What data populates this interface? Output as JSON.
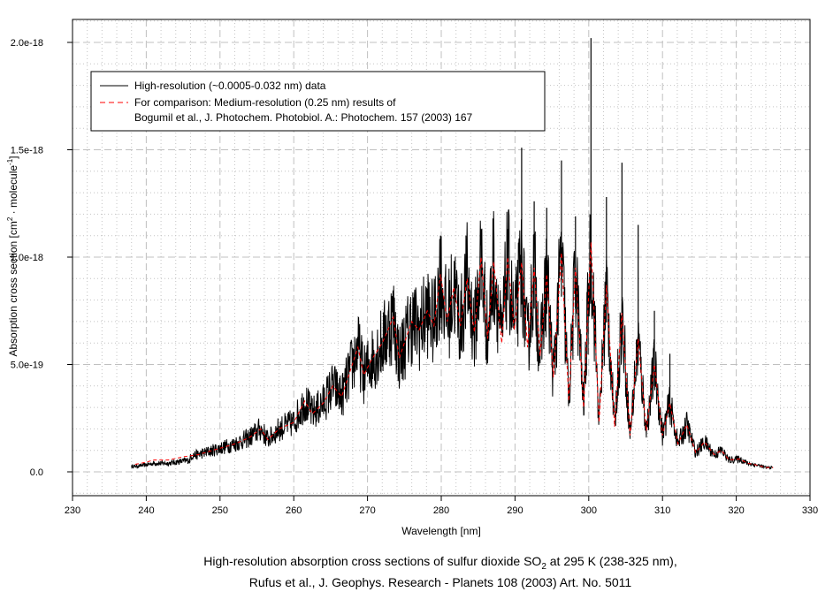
{
  "chart_data": {
    "type": "line",
    "title_line1_a": "High-resolution absorption cross sections of sulfur dioxide SO",
    "title_line1_sub": "2",
    "title_line1_b": " at 295 K (238-325 nm),",
    "title_line2": "Rufus et al., J. Geophys. Research - Planets 108 (2003) Art. No. 5011",
    "xlabel": "Wavelength [nm]",
    "ylabel_a": "Absorption cross section [cm",
    "ylabel_sup1": "2",
    "ylabel_b": " · molecule",
    "ylabel_sup2": "-1",
    "ylabel_c": "]",
    "xlim": [
      230,
      330
    ],
    "ylim_units_1e-19": [
      -1.1,
      21.1
    ],
    "x_ticks": [
      230,
      240,
      250,
      260,
      270,
      280,
      290,
      300,
      310,
      320,
      330
    ],
    "x_tick_labels": [
      "230",
      "240",
      "250",
      "260",
      "270",
      "280",
      "290",
      "300",
      "310",
      "320",
      "330"
    ],
    "y_ticks_units_1e-19": [
      0,
      5,
      10,
      15,
      20
    ],
    "y_tick_labels": [
      "0.0",
      "5.0e-19",
      "1.0e-18",
      "1.5e-18",
      "2.0e-18"
    ],
    "grid": {
      "major": true,
      "minor": true,
      "x_minor_step": 2,
      "y_minor_step_units_1e-19": 1
    },
    "y_unit": "1e-19 cm^2/molecule",
    "legend": {
      "placement": "top-left",
      "entries": [
        {
          "label": "High-resolution (~0.0005-0.032 nm) data",
          "color": "#000000",
          "style": "solid"
        },
        {
          "label": "For comparison: Medium-resolution (0.25 nm) results of",
          "label2": "Bogumil et al., J. Photochem. Photobiol. A.: Photochem. 157 (2003) 167",
          "color": "#ff0000",
          "style": "dashed"
        }
      ]
    },
    "series": [
      {
        "name": "High-resolution (~0.0005-0.032 nm) data",
        "color": "#000000",
        "note": "dense band around medium-resolution curve",
        "spread_fraction": 0.3,
        "spikes": [
          [
            279.9,
            11.0
          ],
          [
            285.4,
            11.3
          ],
          [
            289,
            11.3
          ],
          [
            290.9,
            15.1
          ],
          [
            292.6,
            12.6
          ],
          [
            294.3,
            12.3
          ],
          [
            296.3,
            14.5
          ],
          [
            298.2,
            11.9
          ],
          [
            300.3,
            20.2
          ],
          [
            302.4,
            12.8
          ],
          [
            304.5,
            14.4
          ],
          [
            306.7,
            11.5
          ],
          [
            308.9,
            7.5
          ],
          [
            311,
            5.5
          ]
        ]
      },
      {
        "name": "Medium-resolution (0.25 nm) Bogumil et al.",
        "color": "#ff0000",
        "points": [
          [
            238.5,
            0.35
          ],
          [
            240,
            0.45
          ],
          [
            241,
            0.55
          ],
          [
            243,
            0.55
          ],
          [
            245,
            0.7
          ],
          [
            247,
            0.8
          ],
          [
            249,
            1.0
          ],
          [
            250,
            1.1
          ],
          [
            252,
            1.3
          ],
          [
            254,
            1.6
          ],
          [
            255.5,
            2.0
          ],
          [
            256.5,
            1.5
          ],
          [
            258,
            2.0
          ],
          [
            260,
            2.3
          ],
          [
            261.5,
            3.3
          ],
          [
            262.5,
            2.7
          ],
          [
            264,
            3.2
          ],
          [
            265.3,
            4.0
          ],
          [
            266.5,
            3.5
          ],
          [
            268.7,
            5.8
          ],
          [
            269.5,
            4.5
          ],
          [
            270.5,
            5.2
          ],
          [
            272,
            6.0
          ],
          [
            273.5,
            7.2
          ],
          [
            274.3,
            5.3
          ],
          [
            276,
            7.0
          ],
          [
            277,
            6.6
          ],
          [
            278.1,
            7.5
          ],
          [
            279,
            6.8
          ],
          [
            279.9,
            9.2
          ],
          [
            280.8,
            7.0
          ],
          [
            281.7,
            8.6
          ],
          [
            282.6,
            6.8
          ],
          [
            283.5,
            9.0
          ],
          [
            284.5,
            6.5
          ],
          [
            285.4,
            10.0
          ],
          [
            286.3,
            6.2
          ],
          [
            287.1,
            9.8
          ],
          [
            288.2,
            6.0
          ],
          [
            289,
            10.0
          ],
          [
            289.9,
            6.6
          ],
          [
            290.9,
            9.75
          ],
          [
            291.7,
            5.8
          ],
          [
            292.6,
            9.5
          ],
          [
            293.4,
            5.4
          ],
          [
            294.3,
            9.2
          ],
          [
            295.2,
            4.4
          ],
          [
            296.3,
            10.2
          ],
          [
            297.3,
            3.3
          ],
          [
            298.2,
            9.5
          ],
          [
            299.3,
            3.0
          ],
          [
            300.3,
            10.7
          ],
          [
            301.4,
            2.3
          ],
          [
            302.4,
            8.7
          ],
          [
            303.5,
            2.1
          ],
          [
            304.5,
            7.4
          ],
          [
            305.6,
            1.7
          ],
          [
            306.7,
            6.2
          ],
          [
            307.8,
            1.9
          ],
          [
            308.9,
            5.0
          ],
          [
            310,
            1.7
          ],
          [
            311,
            3.2
          ],
          [
            312.1,
            1.3
          ],
          [
            313.3,
            2.2
          ],
          [
            314.5,
            0.9
          ],
          [
            315.7,
            1.4
          ],
          [
            317,
            0.8
          ],
          [
            318,
            1.0
          ],
          [
            319,
            0.55
          ],
          [
            320.5,
            0.6
          ],
          [
            321.5,
            0.4
          ],
          [
            323,
            0.3
          ],
          [
            324,
            0.2
          ],
          [
            325,
            0.2
          ]
        ]
      }
    ]
  }
}
